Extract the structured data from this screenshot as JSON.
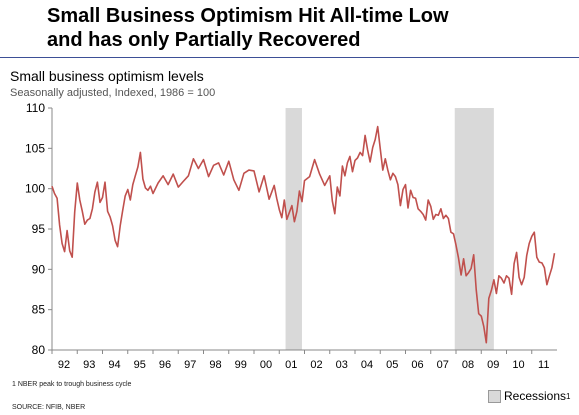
{
  "headline": {
    "line1": "Small Business Optimism Hit All-time Low",
    "line2": "and has only Partially Recovered"
  },
  "chart_data": {
    "type": "line",
    "title": "Small business optimism levels",
    "subtitle": "Seasonally adjusted, Indexed, 1986 = 100",
    "ylim": [
      80,
      110
    ],
    "yticks": [
      80,
      85,
      90,
      95,
      100,
      105,
      110
    ],
    "xlim": [
      1992,
      2012
    ],
    "xticks": [
      {
        "label": "92",
        "x": 1992
      },
      {
        "label": "93",
        "x": 1993
      },
      {
        "label": "94",
        "x": 1994
      },
      {
        "label": "95",
        "x": 1995
      },
      {
        "label": "96",
        "x": 1996
      },
      {
        "label": "97",
        "x": 1997
      },
      {
        "label": "98",
        "x": 1998
      },
      {
        "label": "99",
        "x": 1999
      },
      {
        "label": "00",
        "x": 2000
      },
      {
        "label": "01",
        "x": 2001
      },
      {
        "label": "02",
        "x": 2002
      },
      {
        "label": "03",
        "x": 2003
      },
      {
        "label": "04",
        "x": 2004
      },
      {
        "label": "05",
        "x": 2005
      },
      {
        "label": "06",
        "x": 2006
      },
      {
        "label": "07",
        "x": 2007
      },
      {
        "label": "08",
        "x": 2008
      },
      {
        "label": "09",
        "x": 2009
      },
      {
        "label": "10",
        "x": 2010
      },
      {
        "label": "11",
        "x": 2011
      }
    ],
    "grid": false,
    "line_color": "#c0504d",
    "recession_color": "#d9d9d9",
    "recessions": [
      {
        "start": 2001.25,
        "end": 2001.9
      },
      {
        "start": 2007.95,
        "end": 2009.5
      }
    ],
    "series": [
      {
        "points": [
          [
            1992.0,
            100.3
          ],
          [
            1992.1,
            99.4
          ],
          [
            1992.2,
            98.8
          ],
          [
            1992.3,
            95.5
          ],
          [
            1992.4,
            93.2
          ],
          [
            1992.5,
            92.2
          ],
          [
            1992.6,
            94.8
          ],
          [
            1992.7,
            92.3
          ],
          [
            1992.8,
            91.5
          ],
          [
            1992.9,
            97.1
          ],
          [
            1993.0,
            100.7
          ],
          [
            1993.1,
            98.6
          ],
          [
            1993.2,
            97.2
          ],
          [
            1993.3,
            95.6
          ],
          [
            1993.4,
            96.1
          ],
          [
            1993.5,
            96.3
          ],
          [
            1993.6,
            97.5
          ],
          [
            1993.7,
            99.6
          ],
          [
            1993.8,
            100.8
          ],
          [
            1993.9,
            98.3
          ],
          [
            1994.0,
            98.9
          ],
          [
            1994.1,
            100.8
          ],
          [
            1994.2,
            97.2
          ],
          [
            1994.3,
            96.5
          ],
          [
            1994.4,
            95.4
          ],
          [
            1994.5,
            93.6
          ],
          [
            1994.6,
            92.8
          ],
          [
            1994.7,
            95.4
          ],
          [
            1994.8,
            97.3
          ],
          [
            1994.9,
            99.1
          ],
          [
            1995.0,
            99.9
          ],
          [
            1995.1,
            98.6
          ],
          [
            1995.2,
            100.5
          ],
          [
            1995.3,
            101.6
          ],
          [
            1995.4,
            102.7
          ],
          [
            1995.5,
            104.5
          ],
          [
            1995.6,
            101.2
          ],
          [
            1995.7,
            100.1
          ],
          [
            1995.8,
            99.8
          ],
          [
            1995.9,
            100.3
          ],
          [
            1996.0,
            99.4
          ],
          [
            1996.2,
            100.7
          ],
          [
            1996.4,
            101.6
          ],
          [
            1996.6,
            100.5
          ],
          [
            1996.8,
            101.8
          ],
          [
            1997.0,
            100.2
          ],
          [
            1997.2,
            100.9
          ],
          [
            1997.4,
            101.6
          ],
          [
            1997.6,
            103.7
          ],
          [
            1997.8,
            102.5
          ],
          [
            1998.0,
            103.6
          ],
          [
            1998.2,
            101.5
          ],
          [
            1998.4,
            102.9
          ],
          [
            1998.6,
            103.2
          ],
          [
            1998.8,
            101.7
          ],
          [
            1999.0,
            103.4
          ],
          [
            1999.2,
            101.1
          ],
          [
            1999.4,
            99.8
          ],
          [
            1999.6,
            101.9
          ],
          [
            1999.8,
            102.3
          ],
          [
            2000.0,
            102.2
          ],
          [
            2000.2,
            99.6
          ],
          [
            2000.4,
            101.6
          ],
          [
            2000.6,
            98.7
          ],
          [
            2000.8,
            100.4
          ],
          [
            2000.9,
            98.8
          ],
          [
            2001.0,
            97.4
          ],
          [
            2001.1,
            96.4
          ],
          [
            2001.2,
            98.6
          ],
          [
            2001.3,
            96.2
          ],
          [
            2001.5,
            97.9
          ],
          [
            2001.6,
            95.9
          ],
          [
            2001.7,
            97.2
          ],
          [
            2001.8,
            99.7
          ],
          [
            2001.9,
            98.4
          ],
          [
            2002.0,
            101.0
          ],
          [
            2002.2,
            101.5
          ],
          [
            2002.4,
            103.6
          ],
          [
            2002.6,
            101.8
          ],
          [
            2002.8,
            100.4
          ],
          [
            2003.0,
            101.6
          ],
          [
            2003.1,
            98.5
          ],
          [
            2003.2,
            96.9
          ],
          [
            2003.3,
            100.2
          ],
          [
            2003.4,
            99.1
          ],
          [
            2003.5,
            102.8
          ],
          [
            2003.6,
            101.6
          ],
          [
            2003.7,
            103.2
          ],
          [
            2003.8,
            104.0
          ],
          [
            2003.9,
            102.1
          ],
          [
            2004.0,
            103.5
          ],
          [
            2004.1,
            103.8
          ],
          [
            2004.2,
            104.5
          ],
          [
            2004.3,
            104.1
          ],
          [
            2004.4,
            106.6
          ],
          [
            2004.5,
            104.8
          ],
          [
            2004.6,
            103.3
          ],
          [
            2004.7,
            105.1
          ],
          [
            2004.8,
            106.1
          ],
          [
            2004.9,
            107.7
          ],
          [
            2005.0,
            104.9
          ],
          [
            2005.1,
            102.3
          ],
          [
            2005.2,
            103.7
          ],
          [
            2005.3,
            102.3
          ],
          [
            2005.4,
            101.1
          ],
          [
            2005.5,
            101.9
          ],
          [
            2005.6,
            101.5
          ],
          [
            2005.7,
            100.5
          ],
          [
            2005.8,
            97.9
          ],
          [
            2005.9,
            99.9
          ],
          [
            2006.0,
            100.5
          ],
          [
            2006.1,
            97.6
          ],
          [
            2006.2,
            99.8
          ],
          [
            2006.3,
            98.9
          ],
          [
            2006.4,
            98.8
          ],
          [
            2006.5,
            97.5
          ],
          [
            2006.6,
            97.2
          ],
          [
            2006.7,
            96.8
          ],
          [
            2006.8,
            96.1
          ],
          [
            2006.9,
            98.6
          ],
          [
            2007.0,
            97.8
          ],
          [
            2007.1,
            96.2
          ],
          [
            2007.2,
            96.8
          ],
          [
            2007.3,
            96.7
          ],
          [
            2007.4,
            97.5
          ],
          [
            2007.5,
            96.3
          ],
          [
            2007.6,
            96.7
          ],
          [
            2007.7,
            96.3
          ],
          [
            2007.8,
            94.6
          ],
          [
            2007.9,
            94.4
          ],
          [
            2008.0,
            93.0
          ],
          [
            2008.1,
            91.4
          ],
          [
            2008.2,
            89.3
          ],
          [
            2008.3,
            91.3
          ],
          [
            2008.4,
            89.2
          ],
          [
            2008.5,
            89.6
          ],
          [
            2008.6,
            90.1
          ],
          [
            2008.7,
            91.8
          ],
          [
            2008.8,
            87.5
          ],
          [
            2008.9,
            84.5
          ],
          [
            2009.0,
            84.2
          ],
          [
            2009.1,
            82.9
          ],
          [
            2009.2,
            80.9
          ],
          [
            2009.3,
            86.4
          ],
          [
            2009.4,
            87.4
          ],
          [
            2009.5,
            88.7
          ],
          [
            2009.6,
            87.0
          ],
          [
            2009.7,
            89.2
          ],
          [
            2009.8,
            88.9
          ],
          [
            2009.9,
            88.3
          ],
          [
            2010.0,
            89.2
          ],
          [
            2010.1,
            88.9
          ],
          [
            2010.2,
            86.9
          ],
          [
            2010.3,
            90.7
          ],
          [
            2010.4,
            92.1
          ],
          [
            2010.5,
            89.0
          ],
          [
            2010.6,
            88.1
          ],
          [
            2010.7,
            89.0
          ],
          [
            2010.8,
            91.7
          ],
          [
            2010.9,
            93.2
          ],
          [
            2011.0,
            94.1
          ],
          [
            2011.1,
            94.6
          ],
          [
            2011.2,
            91.5
          ],
          [
            2011.3,
            90.9
          ],
          [
            2011.4,
            90.8
          ],
          [
            2011.5,
            90.2
          ],
          [
            2011.6,
            88.1
          ],
          [
            2011.7,
            89.2
          ],
          [
            2011.8,
            90.2
          ],
          [
            2011.9,
            92.0
          ]
        ]
      }
    ],
    "legend": {
      "label": "Recessions",
      "superscript": "1",
      "placement": "bottom-right"
    }
  },
  "footnote": "1 NBER peak to trough business cycle",
  "source": "SOURCE: NFIB, NBER"
}
